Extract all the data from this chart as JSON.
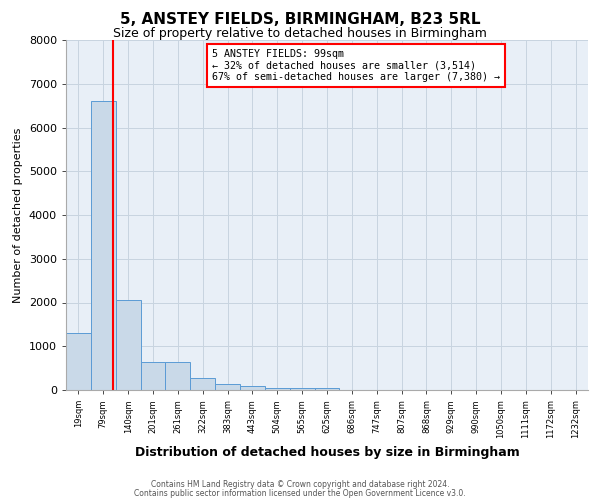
{
  "title": "5, ANSTEY FIELDS, BIRMINGHAM, B23 5RL",
  "subtitle": "Size of property relative to detached houses in Birmingham",
  "xlabel": "Distribution of detached houses by size in Birmingham",
  "ylabel": "Number of detached properties",
  "footnote1": "Contains HM Land Registry data © Crown copyright and database right 2024.",
  "footnote2": "Contains public sector information licensed under the Open Government Licence v3.0.",
  "annotation_line1": "5 ANSTEY FIELDS: 99sqm",
  "annotation_line2": "← 32% of detached houses are smaller (3,514)",
  "annotation_line3": "67% of semi-detached houses are larger (7,380) →",
  "bar_labels": [
    "19sqm",
    "79sqm",
    "140sqm",
    "201sqm",
    "261sqm",
    "322sqm",
    "383sqm",
    "443sqm",
    "504sqm",
    "565sqm",
    "625sqm",
    "686sqm",
    "747sqm",
    "807sqm",
    "868sqm",
    "929sqm",
    "990sqm",
    "1050sqm",
    "1111sqm",
    "1172sqm",
    "1232sqm"
  ],
  "bar_values": [
    1300,
    6600,
    2050,
    650,
    650,
    280,
    130,
    90,
    40,
    40,
    50,
    0,
    0,
    0,
    0,
    0,
    0,
    0,
    0,
    0,
    0
  ],
  "bar_color": "#c9d9e8",
  "bar_edge_color": "#5b9bd5",
  "red_line_x": 1.38,
  "ylim_max": 8000,
  "yticks": [
    0,
    1000,
    2000,
    3000,
    4000,
    5000,
    6000,
    7000,
    8000
  ],
  "grid_color": "#c8d4e0",
  "bg_color": "#e8eff7"
}
